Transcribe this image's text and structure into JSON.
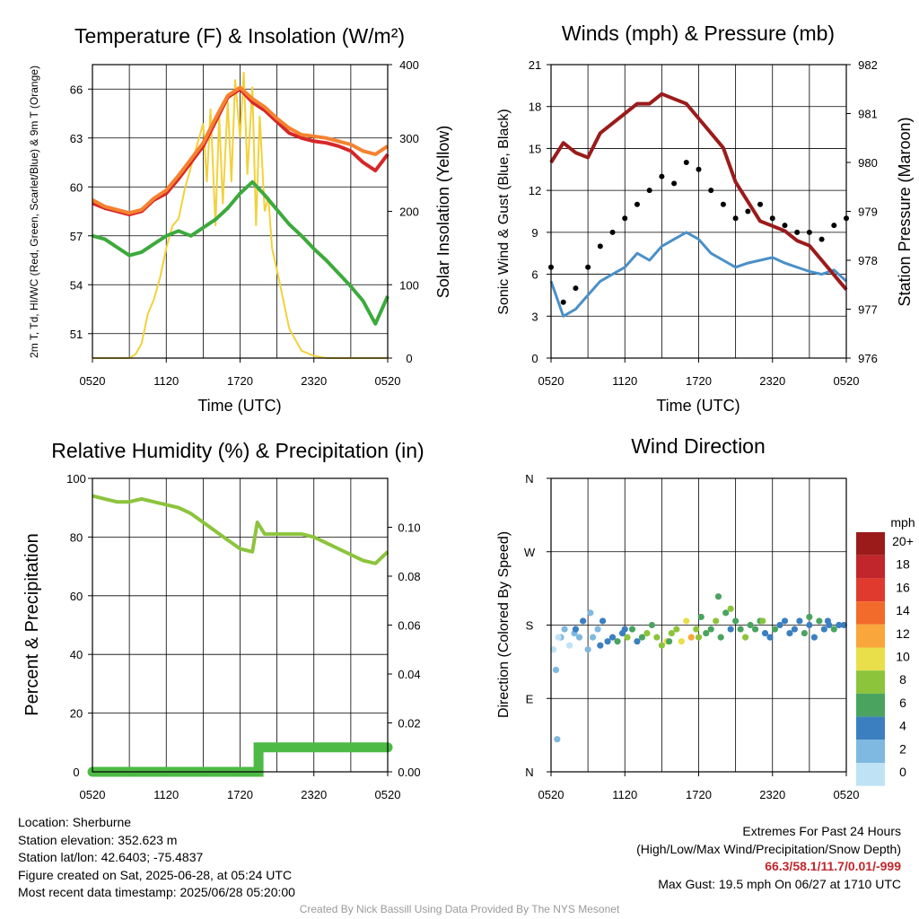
{
  "chart_data": [
    {
      "id": "temp",
      "type": "line",
      "title": "Temperature (F) & Insolation (W/m²)",
      "xlabel": "Time (UTC)",
      "ylabel": "2m T, Td, HI/WC (Red, Green, Scarlet/Blue) & 9m T (Orange)",
      "y2label": "Solar Insolation (Yellow)",
      "x_ticks": [
        "0520",
        "1120",
        "1720",
        "2320",
        "0520"
      ],
      "ylim": [
        49.5,
        67.5
      ],
      "y_ticks": [
        51,
        54,
        57,
        60,
        63,
        66
      ],
      "y2lim": [
        0,
        400
      ],
      "y2_ticks": [
        0,
        100,
        200,
        300,
        400
      ],
      "grid": true,
      "x_hours": [
        0,
        1,
        2,
        3,
        4,
        5,
        6,
        7,
        8,
        9,
        10,
        11,
        12,
        13,
        14,
        15,
        16,
        17,
        18,
        19,
        20,
        21,
        22,
        23,
        24
      ],
      "series": [
        {
          "color": "#d62728",
          "values": [
            59.0,
            58.7,
            58.5,
            58.3,
            58.5,
            59.2,
            59.6,
            60.5,
            61.5,
            62.5,
            64.0,
            65.5,
            66.0,
            65.2,
            64.7,
            64.0,
            63.3,
            63.0,
            62.8,
            62.7,
            62.5,
            62.2,
            61.5,
            61.0,
            62.0
          ]
        },
        {
          "color": "#f58230",
          "values": [
            59.2,
            58.8,
            58.6,
            58.4,
            58.6,
            59.3,
            59.8,
            60.7,
            61.7,
            62.7,
            64.2,
            65.6,
            66.1,
            65.4,
            64.9,
            64.2,
            63.6,
            63.2,
            63.1,
            63.0,
            62.8,
            62.6,
            62.2,
            62.0,
            62.5
          ]
        },
        {
          "color": "#3caa3c",
          "values": [
            57.0,
            56.8,
            56.3,
            55.8,
            56.0,
            56.5,
            57.0,
            57.3,
            57.0,
            57.5,
            58.0,
            58.7,
            59.6,
            60.3,
            59.5,
            58.6,
            57.7,
            57.0,
            56.2,
            55.5,
            54.7,
            53.9,
            53.0,
            51.6,
            53.3
          ]
        }
      ],
      "insolation": {
        "color": "#f2d13c",
        "x_hours": [
          0,
          3,
          3.5,
          4,
          4.5,
          5,
          5.5,
          6,
          6.5,
          7,
          7.5,
          8,
          8.5,
          9,
          9.3,
          9.6,
          10,
          10.3,
          10.6,
          11,
          11.3,
          11.6,
          12,
          12.3,
          12.6,
          13,
          13.3,
          13.6,
          14,
          14.3,
          14.6,
          15,
          15.5,
          16,
          17,
          18,
          19,
          24
        ],
        "values": [
          0,
          0,
          5,
          20,
          60,
          80,
          110,
          150,
          180,
          190,
          230,
          260,
          290,
          320,
          240,
          340,
          180,
          330,
          210,
          350,
          240,
          380,
          300,
          390,
          250,
          370,
          180,
          330,
          200,
          220,
          150,
          120,
          80,
          40,
          10,
          3,
          0,
          0
        ]
      }
    },
    {
      "id": "wind",
      "type": "line",
      "title": "Winds (mph) & Pressure (mb)",
      "xlabel": "Time (UTC)",
      "ylabel": "Sonic Wind & Gust (Blue, Black)",
      "y2label": "Station Pressure (Maroon)",
      "x_ticks": [
        "0520",
        "1120",
        "1720",
        "2320",
        "0520"
      ],
      "ylim": [
        0,
        21
      ],
      "y_ticks": [
        0,
        3,
        6,
        9,
        12,
        15,
        18,
        21
      ],
      "y2lim": [
        976,
        982
      ],
      "y2_ticks": [
        976,
        977,
        978,
        979,
        980,
        981,
        982
      ],
      "grid": true,
      "x_hours": [
        0,
        1,
        2,
        3,
        4,
        5,
        6,
        7,
        8,
        9,
        10,
        11,
        12,
        13,
        14,
        15,
        16,
        17,
        18,
        19,
        20,
        21,
        22,
        23,
        24
      ],
      "series": [
        {
          "name": "",
          "color": "#4a90c8",
          "values": [
            5.5,
            3.0,
            3.5,
            4.5,
            5.5,
            6.0,
            6.5,
            7.5,
            7.0,
            8.0,
            8.5,
            9.0,
            8.5,
            7.5,
            7.0,
            6.5,
            6.8,
            7.0,
            7.2,
            6.8,
            6.5,
            6.2,
            6.0,
            6.3,
            5.5
          ]
        },
        {
          "name": "",
          "color": "#000000",
          "values": [
            6.5,
            4.0,
            5.0,
            6.5,
            8.0,
            9.0,
            10.0,
            11.0,
            12.0,
            13.0,
            12.5,
            14.0,
            13.5,
            12.0,
            11.0,
            10.0,
            10.5,
            11.0,
            10.0,
            9.5,
            9.0,
            9.0,
            8.5,
            9.5,
            10.0
          ]
        }
      ],
      "pressure": {
        "color": "#9b1b1b",
        "values": [
          980.0,
          980.4,
          980.2,
          980.1,
          980.6,
          980.8,
          981.0,
          981.2,
          981.2,
          981.4,
          981.3,
          981.2,
          980.9,
          980.6,
          980.3,
          979.6,
          979.2,
          978.8,
          978.7,
          978.6,
          978.4,
          978.3,
          978.0,
          977.7,
          977.4
        ]
      }
    },
    {
      "id": "rh",
      "type": "line",
      "title": "Relative Humidity (%) & Precipitation (in)",
      "ylabel": "Percent & Precipitation",
      "x_ticks": [
        "0520",
        "1120",
        "1720",
        "2320",
        "0520"
      ],
      "ylim": [
        0,
        100
      ],
      "y_ticks": [
        0,
        20,
        40,
        60,
        80,
        100
      ],
      "y2lim": [
        0,
        0.12
      ],
      "y2_ticks": [
        "0.00",
        "0.02",
        "0.04",
        "0.06",
        "0.08",
        "0.10"
      ],
      "grid": true,
      "x_hours": [
        0,
        1,
        2,
        3,
        4,
        5,
        6,
        7,
        8,
        9,
        10,
        11,
        12,
        13,
        13.4,
        14,
        15,
        16,
        17,
        18,
        19,
        20,
        21,
        22,
        23,
        24
      ],
      "series": [
        {
          "color": "#8cc43c",
          "values": [
            94,
            93,
            92,
            92,
            93,
            92,
            91,
            90,
            88,
            85,
            82,
            79,
            76,
            75,
            85,
            81,
            81,
            81,
            81,
            80,
            78,
            76,
            74,
            72,
            71,
            75
          ]
        }
      ],
      "precip": {
        "color": "#4cba45",
        "x_hours": [
          0,
          13.5,
          13.5,
          24
        ],
        "values": [
          0.0,
          0.0,
          0.01,
          0.01
        ]
      }
    },
    {
      "id": "dir",
      "type": "scatter",
      "title": "Wind Direction",
      "ylabel": "Direction (Colored By Speed)",
      "x_ticks": [
        "0520",
        "1120",
        "1720",
        "2320",
        "0520"
      ],
      "y_ticks": [
        "N",
        "E",
        "S",
        "W",
        "N"
      ],
      "ylim": [
        0,
        360
      ],
      "grid": true,
      "colorbar": {
        "title": "mph",
        "labels": [
          "20+",
          "18",
          "16",
          "14",
          "12",
          "10",
          "8",
          "6",
          "4",
          "2",
          "0"
        ],
        "colors": [
          "#9b1b1b",
          "#c0262b",
          "#e03a2e",
          "#f26b2b",
          "#f9a63c",
          "#e8df4a",
          "#8cc43c",
          "#4aa460",
          "#3b7fc0",
          "#7fb8e0",
          "#bfe3f5"
        ]
      },
      "x_hours": [
        0.2,
        0.5,
        0.8,
        1.1,
        1.5,
        1.9,
        2.3,
        2.6,
        3.0,
        3.4,
        3.8,
        4.2,
        4.6,
        5.0,
        5.4,
        5.8,
        6.2,
        6.6,
        7.0,
        7.4,
        7.8,
        8.2,
        8.6,
        9.0,
        9.4,
        9.8,
        10.2,
        10.6,
        11.0,
        11.4,
        11.8,
        12.2,
        12.6,
        13.0,
        13.4,
        13.8,
        14.2,
        14.6,
        15.0,
        15.4,
        15.8,
        16.2,
        16.6,
        17.0,
        17.4,
        17.8,
        18.2,
        18.6,
        19.0,
        19.4,
        19.8,
        20.2,
        20.6,
        21.0,
        21.4,
        21.8,
        22.2,
        22.6,
        23.0,
        23.4,
        23.8,
        0.4,
        2.0,
        3.2,
        6.0,
        9.6,
        13.6,
        14.6,
        17.2,
        21.0,
        22.5,
        0.6,
        4.0,
        12.0
      ],
      "values": [
        150,
        40,
        165,
        175,
        155,
        170,
        165,
        185,
        150,
        165,
        175,
        185,
        160,
        165,
        160,
        170,
        165,
        175,
        160,
        165,
        170,
        180,
        165,
        155,
        160,
        170,
        175,
        160,
        185,
        165,
        175,
        190,
        170,
        175,
        185,
        165,
        195,
        175,
        185,
        175,
        165,
        180,
        175,
        185,
        170,
        165,
        175,
        180,
        185,
        170,
        175,
        185,
        170,
        180,
        165,
        185,
        175,
        180,
        175,
        180,
        180,
        125,
        175,
        195,
        175,
        160,
        215,
        200,
        185,
        190,
        185,
        165,
        155,
        165
      ],
      "speeds": [
        1,
        3,
        2,
        2,
        1,
        2,
        3,
        4,
        2,
        3,
        2,
        4,
        5,
        5,
        6,
        4,
        8,
        6,
        5,
        7,
        8,
        7,
        8,
        9,
        10,
        8,
        9,
        10,
        11,
        12,
        8,
        7,
        6,
        7,
        8,
        7,
        7,
        5,
        6,
        6,
        8,
        7,
        6,
        6,
        5,
        5,
        6,
        4,
        4,
        4,
        4,
        5,
        6,
        5,
        4,
        7,
        5,
        4,
        6,
        5,
        5,
        3,
        4,
        3,
        4,
        7,
        7,
        8,
        8,
        6,
        5,
        1,
        4,
        8
      ]
    }
  ],
  "info": {
    "location": "Location: Sherburne",
    "elevation": "Station elevation: 352.623 m",
    "latlon": "Station lat/lon: 42.6403; -75.4837",
    "created": "Figure created on Sat, 2025-06-28, at 05:24 UTC",
    "recent": "Most recent data timestamp: 2025/06/28 05:20:00"
  },
  "extremes": {
    "title": "Extremes For Past 24 Hours",
    "legend": "(High/Low/Max Wind/Precipitation/Snow Depth)",
    "values": "66.3/58.1/11.7/0.01/-999",
    "gust": "Max Gust: 19.5 mph On 06/27 at 1710 UTC"
  },
  "credit": "Created By Nick Bassill Using Data Provided By The NYS Mesonet"
}
